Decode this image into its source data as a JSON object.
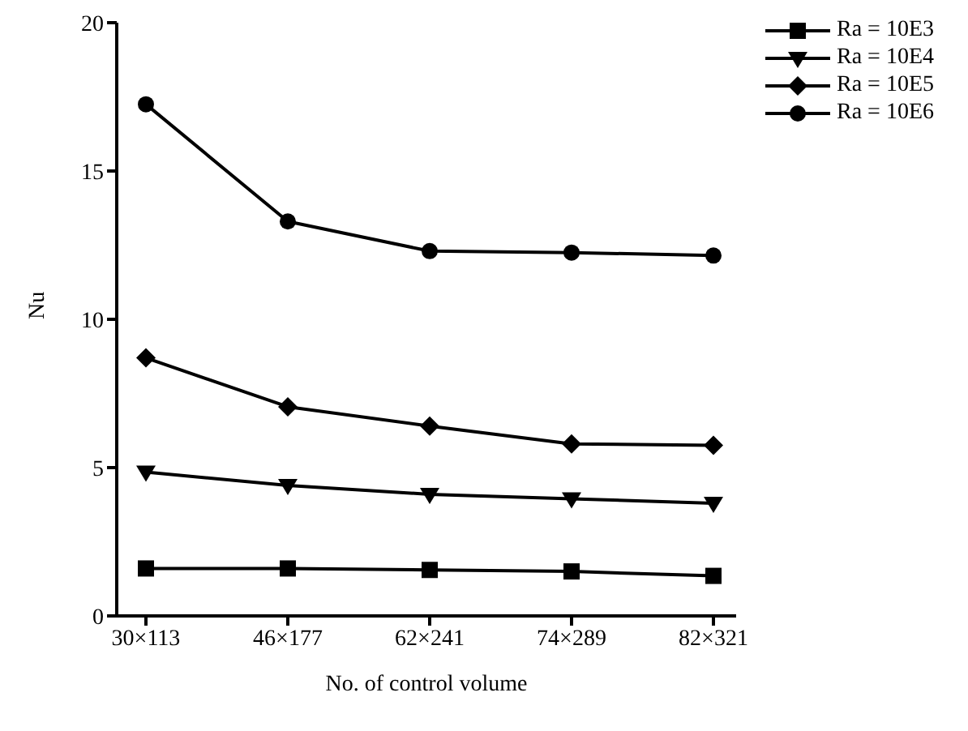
{
  "chart_data": {
    "type": "line",
    "xlabel": "No. of control volume",
    "ylabel": "Nu",
    "categories": [
      "30×113",
      "46×177",
      "62×241",
      "74×289",
      "82×321"
    ],
    "ylim": [
      0,
      20
    ],
    "yticks": [
      0,
      5,
      10,
      15,
      20
    ],
    "legend": "top right",
    "grid": false,
    "line_style": "solid",
    "series": [
      {
        "name": "Ra = 10E3",
        "color": "#000000",
        "marker": "square",
        "values": [
          1.6,
          1.6,
          1.55,
          1.5,
          1.35
        ]
      },
      {
        "name": "Ra = 10E4",
        "color": "#000000",
        "marker": "triangle",
        "values": [
          4.85,
          4.4,
          4.1,
          3.95,
          3.8
        ]
      },
      {
        "name": "Ra = 10E5",
        "color": "#000000",
        "marker": "diamond",
        "values": [
          8.7,
          7.05,
          6.4,
          5.8,
          5.75
        ]
      },
      {
        "name": "Ra = 10E6",
        "color": "#000000",
        "marker": "circle",
        "values": [
          17.25,
          13.3,
          12.3,
          12.25,
          12.15
        ]
      }
    ]
  }
}
